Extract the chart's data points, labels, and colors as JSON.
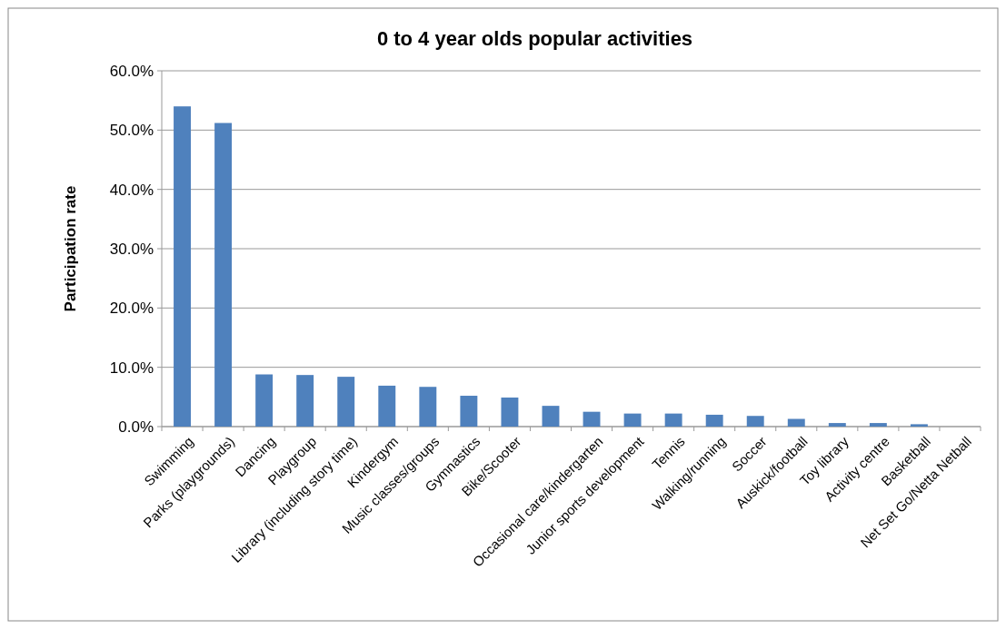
{
  "chart_data": {
    "type": "bar",
    "title": "0 to 4 year olds popular activities",
    "ylabel": "Participation rate",
    "categories": [
      "Swimming",
      "Parks (playgrounds)",
      "Dancing",
      "Playgroup",
      "Library (including story time)",
      "Kindergym",
      "Music classes/groups",
      "Gymnastics",
      "Bike/Scooter",
      null,
      "Occasional care/kindergarten",
      "Junior sports development",
      "Tennis",
      "Walking/running",
      "Soccer",
      "Auskick/football",
      "Toy library",
      "Activity centre",
      "Basketball",
      "Net Set Go/Netta Netball"
    ],
    "values": [
      54.0,
      51.2,
      8.8,
      8.7,
      8.4,
      6.9,
      6.7,
      5.2,
      4.9,
      3.5,
      2.5,
      2.2,
      2.2,
      2.0,
      1.8,
      1.3,
      0.6,
      0.6,
      0.4,
      0
    ],
    "color": "#4f81bd",
    "ylim": [
      0,
      60
    ],
    "yticks": [
      {
        "value": 0,
        "label": "0.0%"
      },
      {
        "value": 10,
        "label": "10.0%"
      },
      {
        "value": 20,
        "label": "20.0%"
      },
      {
        "value": 30,
        "label": "30.0%"
      },
      {
        "value": 40,
        "label": "40.0%"
      },
      {
        "value": 50,
        "label": "50.0%"
      },
      {
        "value": 60,
        "label": "60.0%"
      }
    ],
    "grid": "y"
  }
}
